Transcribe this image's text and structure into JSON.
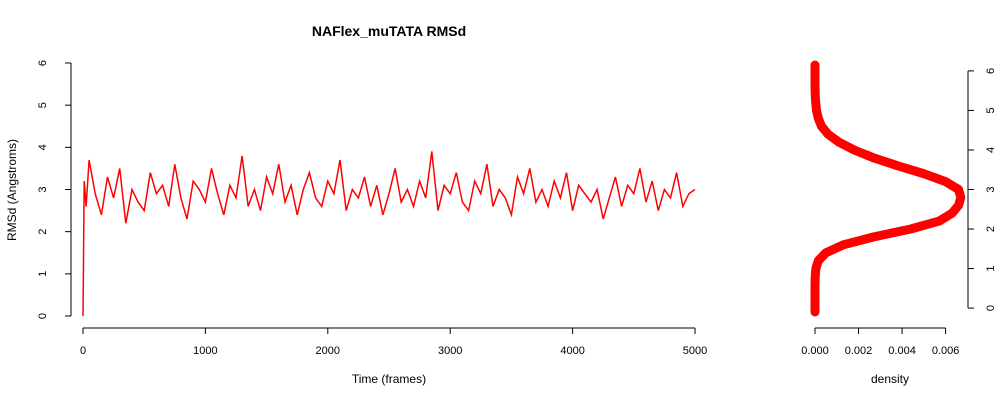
{
  "chart_data": [
    {
      "type": "line",
      "title": "NAFlex_muTATA RMSd",
      "xlabel": "Time (frames)",
      "ylabel": "RMSd (Angstroms)",
      "xlim": [
        0,
        5000
      ],
      "ylim": [
        0,
        6
      ],
      "x_ticks": [
        "0",
        "1000",
        "2000",
        "3000",
        "4000",
        "5000"
      ],
      "y_ticks": [
        "0",
        "1",
        "2",
        "3",
        "4",
        "5",
        "6"
      ],
      "grid": false,
      "line_color": "#ff0000",
      "series": [
        {
          "x": [
            0,
            10,
            25,
            50,
            100,
            150,
            200,
            250,
            300,
            350,
            400,
            450,
            500,
            550,
            600,
            650,
            700,
            750,
            800,
            850,
            900,
            950,
            1000,
            1050,
            1100,
            1150,
            1200,
            1250,
            1300,
            1350,
            1400,
            1450,
            1500,
            1550,
            1600,
            1650,
            1700,
            1750,
            1800,
            1850,
            1900,
            1950,
            2000,
            2050,
            2100,
            2150,
            2200,
            2250,
            2300,
            2350,
            2400,
            2450,
            2500,
            2550,
            2600,
            2650,
            2700,
            2750,
            2800,
            2850,
            2900,
            2950,
            3000,
            3050,
            3100,
            3150,
            3200,
            3250,
            3300,
            3350,
            3400,
            3450,
            3500,
            3550,
            3600,
            3650,
            3700,
            3750,
            3800,
            3850,
            3900,
            3950,
            4000,
            4050,
            4100,
            4150,
            4200,
            4250,
            4300,
            4350,
            4400,
            4450,
            4500,
            4550,
            4600,
            4650,
            4700,
            4750,
            4800,
            4850,
            4900,
            4950,
            5000
          ],
          "values": [
            0.0,
            3.2,
            2.6,
            3.7,
            2.9,
            2.4,
            3.3,
            2.8,
            3.5,
            2.2,
            3.0,
            2.7,
            2.5,
            3.4,
            2.9,
            3.1,
            2.6,
            3.6,
            2.8,
            2.3,
            3.2,
            3.0,
            2.7,
            3.5,
            2.9,
            2.4,
            3.1,
            2.8,
            3.8,
            2.6,
            3.0,
            2.5,
            3.3,
            2.9,
            3.6,
            2.7,
            3.1,
            2.4,
            3.0,
            3.4,
            2.8,
            2.6,
            3.2,
            2.9,
            3.7,
            2.5,
            3.0,
            2.8,
            3.3,
            2.6,
            3.1,
            2.4,
            2.9,
            3.5,
            2.7,
            3.0,
            2.6,
            3.2,
            2.8,
            3.9,
            2.5,
            3.1,
            2.9,
            3.4,
            2.7,
            2.5,
            3.2,
            2.9,
            3.6,
            2.6,
            3.0,
            2.8,
            2.4,
            3.3,
            2.9,
            3.5,
            2.7,
            3.0,
            2.6,
            3.2,
            2.8,
            3.4,
            2.5,
            3.1,
            2.9,
            2.7,
            3.0,
            2.3,
            2.8,
            3.3,
            2.6,
            3.1,
            2.9,
            3.5,
            2.7,
            3.2,
            2.5,
            3.0,
            2.8,
            3.4,
            2.6,
            2.9,
            3.0
          ]
        }
      ]
    },
    {
      "type": "line",
      "title": "",
      "xlabel": "density",
      "ylabel": "",
      "xlim": [
        0,
        0.0068
      ],
      "ylim": [
        -0.2,
        6.2
      ],
      "x_ticks": [
        "0.000",
        "0.002",
        "0.004",
        "0.006"
      ],
      "y_ticks": [
        "0",
        "1",
        "2",
        "3",
        "4",
        "5",
        "6"
      ],
      "grid": false,
      "marker_color": "#ff0000",
      "series": [
        {
          "y": [
            -0.1,
            0.2,
            0.5,
            0.8,
            1.0,
            1.2,
            1.4,
            1.6,
            1.8,
            2.0,
            2.2,
            2.4,
            2.6,
            2.8,
            3.0,
            3.2,
            3.4,
            3.6,
            3.8,
            4.0,
            4.2,
            4.4,
            4.6,
            4.8,
            5.0,
            5.2,
            5.4,
            5.6,
            5.8,
            6.0,
            6.15
          ],
          "values": [
            0.0,
            0.0,
            0.0,
            1e-05,
            4e-05,
            0.00015,
            0.0005,
            0.0013,
            0.0027,
            0.0044,
            0.0057,
            0.0063,
            0.0066,
            0.0067,
            0.0066,
            0.006,
            0.005,
            0.0038,
            0.0027,
            0.0018,
            0.0011,
            0.0006,
            0.0003,
            0.00015,
            7e-05,
            3e-05,
            1e-05,
            0.0,
            0.0,
            0.0,
            0.0
          ]
        }
      ]
    }
  ]
}
